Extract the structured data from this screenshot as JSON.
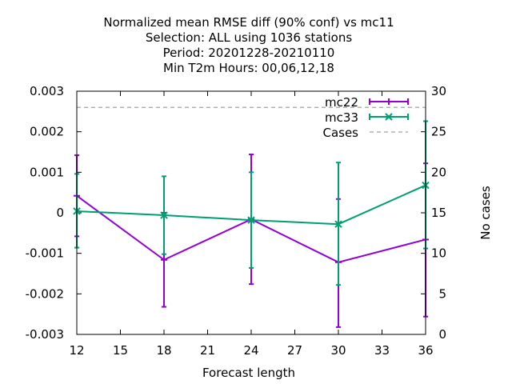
{
  "chart_data": {
    "type": "line",
    "title_lines": [
      "Normalized mean RMSE diff (90% conf) vs mc11",
      "Selection: ALL using  1036 stations",
      "Period: 20201228-20210110",
      "Min T2m   Hours:  00,06,12,18"
    ],
    "xlabel": "Forecast length",
    "ylabel": "",
    "y2label": "No cases",
    "xlim": [
      12,
      36
    ],
    "ylim": [
      -0.003,
      0.003
    ],
    "y2lim": [
      0,
      30
    ],
    "xticks": [
      "12",
      "15",
      "18",
      "21",
      "24",
      "27",
      "30",
      "33",
      "36"
    ],
    "yticks": [
      "0.003",
      "0.002",
      "0.001",
      "0",
      "-0.001",
      "-0.002",
      "-0.003"
    ],
    "y2ticks": [
      "30",
      "25",
      "20",
      "15",
      "10",
      "5",
      "0"
    ],
    "grid": false,
    "legend_position": "top-right",
    "series": [
      {
        "name": "mc22",
        "color": "#9400d3",
        "marker": "plus",
        "x": [
          12,
          18,
          24,
          30,
          36
        ],
        "y": [
          0.00042,
          -0.00116,
          -0.00016,
          -0.00122,
          -0.00066
        ],
        "y_low": [
          -0.00058,
          -0.00232,
          -0.00176,
          -0.00282,
          -0.00256
        ],
        "y_high": [
          0.00142,
          0.0,
          0.00144,
          0.00034,
          0.00122
        ]
      },
      {
        "name": "mc33",
        "color": "#009e73",
        "marker": "cross",
        "x": [
          12,
          18,
          24,
          30,
          36
        ],
        "y": [
          4e-05,
          -6e-05,
          -0.00018,
          -0.00028,
          0.00068
        ],
        "y_low": [
          -0.00086,
          -0.00102,
          -0.00136,
          -0.00178,
          -0.00088
        ],
        "y_high": [
          0.00096,
          0.0009,
          0.001,
          0.00124,
          0.00226
        ]
      },
      {
        "name": "Cases",
        "axis": "y2",
        "color": "#a0a0a0",
        "style": "dashed",
        "x": [
          12,
          36
        ],
        "y": [
          28,
          28
        ]
      }
    ]
  }
}
